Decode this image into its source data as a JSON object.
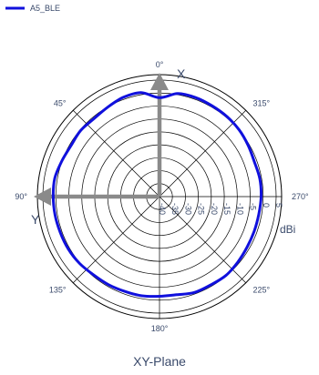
{
  "chart_data": {
    "type": "polar-line",
    "title": "XY-Plane",
    "unit": "dBi",
    "legend": [
      {
        "name": "A5_BLE",
        "color": "#1010dd"
      }
    ],
    "angle_labels": [
      "0°",
      "45°",
      "90°",
      "135°",
      "180°",
      "225°",
      "270°",
      "315°"
    ],
    "ring_labels": [
      "-40",
      "-35",
      "-30",
      "-25",
      "-20",
      "-15",
      "-10",
      "-5",
      "0",
      "5"
    ],
    "r_range": [
      -40,
      5
    ],
    "axis_letters": {
      "x": "X",
      "y": "Y"
    },
    "series": [
      {
        "name": "A5_BLE",
        "color": "#1010dd",
        "theta": [
          0,
          10,
          20,
          30,
          40,
          50,
          60,
          70,
          80,
          90,
          100,
          110,
          120,
          130,
          140,
          150,
          160,
          170,
          180,
          190,
          200,
          210,
          220,
          230,
          240,
          250,
          260,
          270,
          280,
          290,
          300,
          310,
          320,
          330,
          340,
          350
        ],
        "r": [
          -1.8,
          0.8,
          0.8,
          -0.1,
          -0.7,
          -0.3,
          -0.6,
          0.1,
          1.0,
          1.0,
          0.9,
          0.7,
          0.6,
          0.2,
          -0.5,
          -0.7,
          -1.0,
          -1.1,
          -1.5,
          -1.5,
          -0.6,
          -0.6,
          -0.2,
          -0.6,
          -1.0,
          -1.1,
          -1.1,
          -0.8,
          -0.7,
          -1.0,
          -0.5,
          0.1,
          0.4,
          0.5,
          0.7,
          0.4
        ]
      }
    ]
  }
}
